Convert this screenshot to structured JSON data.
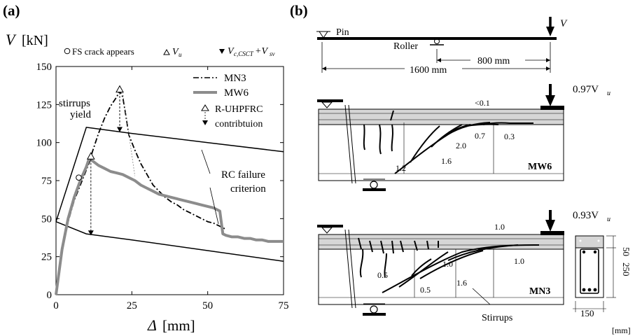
{
  "panel_a": {
    "label": "(a)",
    "ylabel_main": "V",
    "ylabel_unit": "[kN]",
    "xlabel_main": "Δ",
    "xlabel_unit": "[mm]",
    "legend_top": {
      "fs_crack": "FS crack appears",
      "vu_main": "V",
      "vu_sub": "u",
      "vcsct_main": "V",
      "vcsct_sub": "c,CSCT",
      "vsv_plus": "+V",
      "vsv_sub": "sv"
    },
    "legend": {
      "mn3": "MN3",
      "mw6": "MW6",
      "r_uhpfrc_1": "R-UHPFRC",
      "r_uhpfrc_2": "contribtuion"
    },
    "annotations": {
      "stirrups_1": "stirrups",
      "stirrups_2": "yield",
      "rc_failure_1": "RC failure",
      "rc_failure_2": "criterion"
    }
  },
  "chart_data": {
    "type": "line",
    "xlabel": "Δ [mm]",
    "ylabel": "V [kN]",
    "xlim": [
      0,
      75
    ],
    "ylim": [
      0,
      150
    ],
    "xticks": [
      0,
      25,
      50,
      75
    ],
    "yticks": [
      0,
      25,
      50,
      75,
      100,
      125,
      150
    ],
    "series": [
      {
        "name": "MN3",
        "style": "dash-dot",
        "color": "#000000",
        "x": [
          0,
          2,
          4,
          6,
          8,
          10,
          11,
          12,
          14,
          16,
          18,
          20,
          21,
          22,
          23,
          24,
          26,
          28,
          30,
          32,
          34,
          36,
          38,
          40,
          42,
          44,
          46,
          48,
          50,
          52,
          54,
          56
        ],
        "y": [
          0,
          28,
          48,
          62,
          72,
          82,
          87,
          94,
          106,
          116,
          124,
          130,
          134,
          130,
          118,
          105,
          95,
          86,
          79,
          72,
          68,
          64,
          61,
          59,
          56,
          54,
          52,
          50,
          48,
          47,
          45,
          43
        ]
      },
      {
        "name": "MW6",
        "style": "solid-gray",
        "color": "#8c8c8c",
        "x": [
          0,
          2,
          4,
          6,
          8,
          10,
          11,
          12,
          14,
          16,
          18,
          20,
          22,
          24,
          26,
          28,
          30,
          32,
          34,
          36,
          38,
          40,
          42,
          44,
          46,
          48,
          50,
          52,
          54,
          55,
          56,
          58,
          60,
          62,
          64,
          66,
          68,
          70,
          72,
          74,
          75
        ],
        "y": [
          0,
          30,
          50,
          64,
          75,
          84,
          90,
          88,
          85,
          83,
          81,
          80,
          79,
          77,
          75,
          72,
          70,
          68,
          66,
          65,
          64,
          63,
          62,
          61,
          60,
          59,
          58,
          57,
          55,
          40,
          39,
          38,
          38,
          37,
          37,
          36,
          36,
          35,
          35,
          35,
          35
        ]
      }
    ],
    "markers": {
      "fs_crack_points": [
        {
          "x": 7.5,
          "y": 77
        }
      ],
      "vu_points": [
        {
          "x": 11.5,
          "y": 91
        },
        {
          "x": 21,
          "y": 135
        }
      ],
      "uhpfrc_contrib_points": [
        {
          "x": 21,
          "y": 107
        },
        {
          "x": 11.5,
          "y": 39
        }
      ]
    },
    "stirrups_yield_curve": {
      "x": [
        0,
        10,
        25,
        50,
        75
      ],
      "y": [
        48,
        110,
        106,
        100,
        94
      ]
    },
    "rc_failure_curve": {
      "x": [
        0,
        10,
        25,
        50,
        75
      ],
      "y": [
        48,
        40,
        36,
        29,
        22
      ]
    }
  },
  "panel_b": {
    "label": "(b)",
    "pin": "Pin",
    "roller": "Roller",
    "load_v": "V",
    "dim_800": "800 mm",
    "dim_1600": "1600 mm",
    "mw6": {
      "name": "MW6",
      "load_main": "0.97V",
      "load_sub": "u",
      "cracks": [
        "<0.1",
        "0.7",
        "0.3",
        "2.0",
        "1.6",
        "1.2"
      ]
    },
    "mn3": {
      "name": "MN3",
      "load_main": "0.93V",
      "load_sub": "u",
      "cracks": [
        "1.0",
        "1.0",
        "1.0",
        "0.5",
        "1.6",
        "0.5"
      ],
      "stirrups": "Stirrups"
    },
    "section": {
      "dim_50": "50",
      "dim_250": "250",
      "dim_150": "150"
    },
    "unit": "[mm]"
  }
}
